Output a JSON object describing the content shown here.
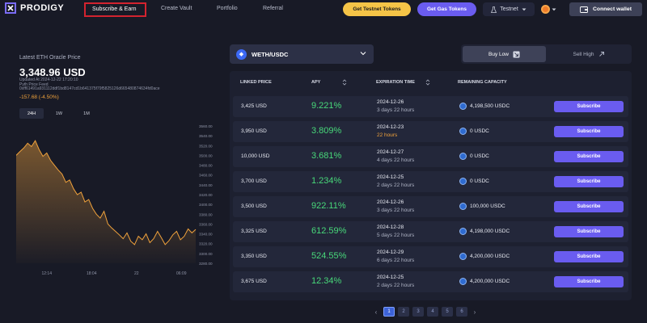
{
  "brand": {
    "name": "PRODIGY"
  },
  "nav": {
    "active": "Subscribe & Earn",
    "items": [
      "Create Vault",
      "Portfolio",
      "Referral"
    ]
  },
  "header": {
    "testnet_tokens": "Get Testnet Tokens",
    "gas_tokens": "Get Gas Tokens",
    "network": "Testnet",
    "connect_wallet": "Connect wallet"
  },
  "oracle": {
    "title": "Latest ETH Oracle Price",
    "price": "3,348.96 USD",
    "updated": "Updated At 2024-12-22 17:20:10",
    "feed_label": "Pyth Price Feed",
    "feed_id": "0xff61491a931112ddf1bd8147cd1b641375f79f5825126d665480874634fd0ace",
    "change": "-157.68 (-4.50%)",
    "ranges": [
      "24H",
      "1W",
      "1M"
    ],
    "active_range": "24H"
  },
  "chart_data": {
    "type": "area",
    "title": "",
    "ylim": [
      3280,
      3560
    ],
    "y_ticks": [
      "3560.00",
      "3540.00",
      "3520.00",
      "3500.00",
      "3480.00",
      "3460.00",
      "3440.00",
      "3420.00",
      "3400.00",
      "3380.00",
      "3360.00",
      "3340.00",
      "3320.00",
      "3300.00",
      "3280.00"
    ],
    "x_ticks": [
      "12:14",
      "18:04",
      "22",
      "06:09"
    ],
    "x": [
      0,
      1,
      2,
      3,
      4,
      5,
      6,
      7,
      8,
      9,
      10,
      11,
      12,
      13,
      14,
      15,
      16,
      17,
      18,
      19,
      20,
      21,
      22,
      23,
      24,
      25,
      26,
      27,
      28,
      29,
      30,
      31,
      32,
      33,
      34,
      35,
      36,
      37,
      38,
      39,
      40,
      41,
      42,
      43,
      44,
      45,
      46,
      47
    ],
    "values": [
      3500,
      3508,
      3515,
      3525,
      3518,
      3530,
      3512,
      3498,
      3505,
      3490,
      3480,
      3470,
      3462,
      3445,
      3450,
      3432,
      3420,
      3425,
      3405,
      3410,
      3392,
      3380,
      3372,
      3386,
      3360,
      3352,
      3345,
      3338,
      3330,
      3342,
      3325,
      3318,
      3335,
      3328,
      3340,
      3322,
      3330,
      3345,
      3332,
      3318,
      3326,
      3338,
      3345,
      3328,
      3335,
      3350,
      3342,
      3349
    ]
  },
  "pair": {
    "label": "WETH/USDC"
  },
  "toggle": {
    "low": "Buy Low",
    "high": "Sell High"
  },
  "table": {
    "headers": [
      "LINKED PRICE",
      "APY",
      "EXPIRATION TIME",
      "REMAINING CAPACITY"
    ],
    "subscribe_label": "Subscribe",
    "rows": [
      {
        "linked": "3,425 USD",
        "apy": "9.221%",
        "date": "2024-12-26",
        "left": "3 days 22 hours",
        "cap": "4,198,500 USDC",
        "warn": false
      },
      {
        "linked": "3,950 USD",
        "apy": "3.809%",
        "date": "2024-12-23",
        "left": "22 hours",
        "cap": "0 USDC",
        "warn": true
      },
      {
        "linked": "10,000 USD",
        "apy": "3.681%",
        "date": "2024-12-27",
        "left": "4 days 22 hours",
        "cap": "0 USDC",
        "warn": false
      },
      {
        "linked": "3,700 USD",
        "apy": "1.234%",
        "date": "2024-12-25",
        "left": "2 days 22 hours",
        "cap": "0 USDC",
        "warn": false
      },
      {
        "linked": "3,500 USD",
        "apy": "922.11%",
        "date": "2024-12-26",
        "left": "3 days 22 hours",
        "cap": "100,000 USDC",
        "warn": false
      },
      {
        "linked": "3,325 USD",
        "apy": "612.59%",
        "date": "2024-12-28",
        "left": "5 days 22 hours",
        "cap": "4,198,000 USDC",
        "warn": false
      },
      {
        "linked": "3,350 USD",
        "apy": "524.55%",
        "date": "2024-12-29",
        "left": "6 days 22 hours",
        "cap": "4,200,000 USDC",
        "warn": false
      },
      {
        "linked": "3,675 USD",
        "apy": "12.34%",
        "date": "2024-12-25",
        "left": "2 days 22 hours",
        "cap": "4,200,000 USDC",
        "warn": false
      }
    ]
  },
  "pagination": {
    "pages": [
      "1",
      "2",
      "3",
      "4",
      "5",
      "6"
    ],
    "active": "1"
  },
  "colors": {
    "accent": "#6a5cf0",
    "positive": "#48d97a",
    "warning": "#f0a23c",
    "chart_line": "#f0a23c"
  }
}
